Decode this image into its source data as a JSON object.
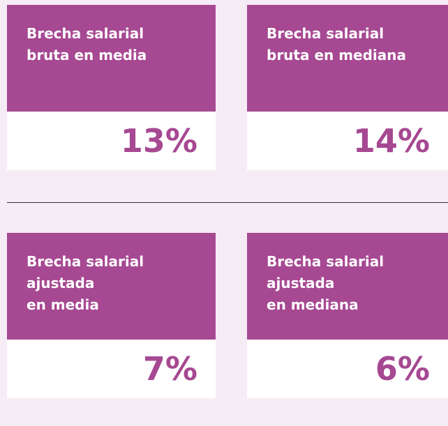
{
  "cards": [
    {
      "title_lines": [
        "Brecha salarial",
        "bruta en media"
      ],
      "value": "13%"
    },
    {
      "title_lines": [
        "Brecha salarial",
        "bruta en mediana"
      ],
      "value": "14%"
    },
    {
      "title_lines": [
        "Brecha salarial",
        "ajustada",
        "en media"
      ],
      "value": "7%"
    },
    {
      "title_lines": [
        "Brecha salarial",
        "ajustada",
        "en mediana"
      ],
      "value": "6%"
    }
  ]
}
